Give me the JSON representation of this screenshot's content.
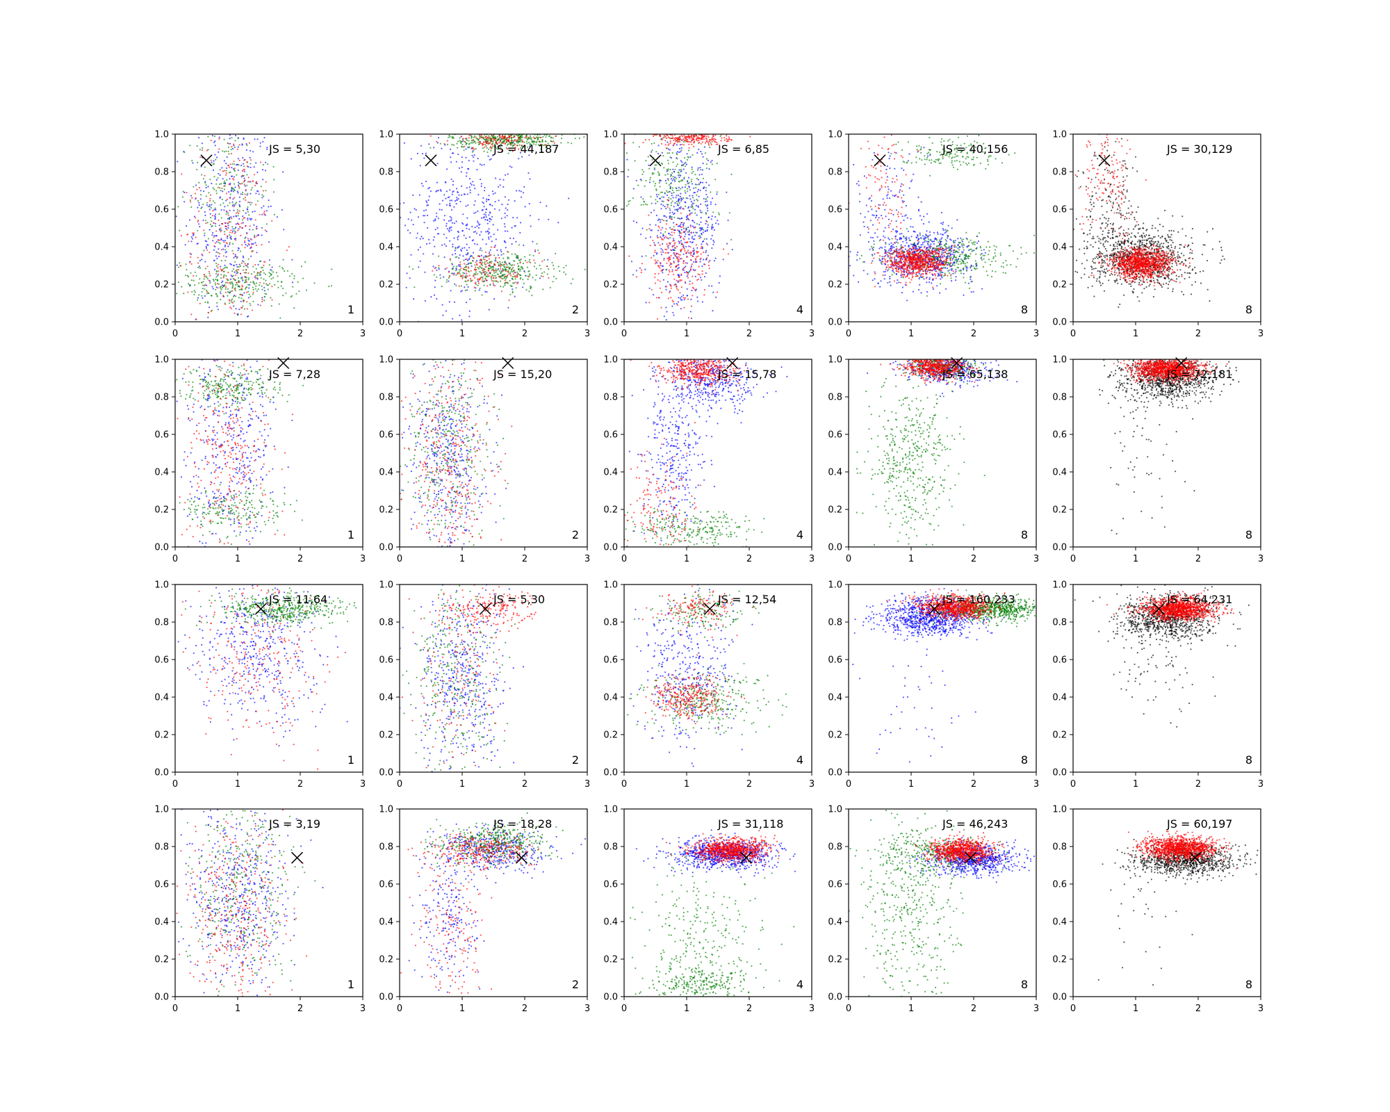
{
  "chart_data": {
    "type": "scatter",
    "layout": {
      "rows": 4,
      "cols": 5
    },
    "xlim": [
      0,
      3
    ],
    "ylim": [
      0,
      1
    ],
    "xticks": [
      "0",
      "1",
      "2",
      "3"
    ],
    "yticks": [
      "0.0",
      "0.2",
      "0.4",
      "0.6",
      "0.8",
      "1.0"
    ],
    "colors": {
      "blue": "#0000ff",
      "green": "#008000",
      "red": "#ff0000",
      "black": "#000000"
    },
    "rows": [
      {
        "marker": [
          0.5,
          0.86
        ],
        "panels": [
          {
            "label": "JS = 5,30",
            "number": "1",
            "clusters": [
              {
                "color": "blue",
                "n": 420,
                "cx": 0.9,
                "cy": 0.55,
                "sx": 0.35,
                "sy": 0.3
              },
              {
                "color": "green",
                "n": 300,
                "cx": 1.0,
                "cy": 0.2,
                "sx": 0.5,
                "sy": 0.06
              },
              {
                "color": "green",
                "n": 200,
                "cx": 0.8,
                "cy": 0.7,
                "sx": 0.35,
                "sy": 0.2
              },
              {
                "color": "red",
                "n": 300,
                "cx": 0.9,
                "cy": 0.45,
                "sx": 0.4,
                "sy": 0.3
              }
            ]
          },
          {
            "label": "JS = 44,187",
            "number": "2",
            "clusters": [
              {
                "color": "blue",
                "n": 550,
                "cx": 1.1,
                "cy": 0.55,
                "sx": 0.5,
                "sy": 0.25
              },
              {
                "color": "green",
                "n": 380,
                "cx": 1.7,
                "cy": 0.97,
                "sx": 0.45,
                "sy": 0.025
              },
              {
                "color": "green",
                "n": 350,
                "cx": 1.6,
                "cy": 0.27,
                "sx": 0.45,
                "sy": 0.05
              },
              {
                "color": "red",
                "n": 150,
                "cx": 1.6,
                "cy": 0.97,
                "sx": 0.4,
                "sy": 0.025
              },
              {
                "color": "red",
                "n": 150,
                "cx": 1.4,
                "cy": 0.27,
                "sx": 0.4,
                "sy": 0.05
              }
            ]
          },
          {
            "label": "JS = 6,85",
            "number": "4",
            "clusters": [
              {
                "color": "blue",
                "n": 550,
                "cx": 0.95,
                "cy": 0.5,
                "sx": 0.3,
                "sy": 0.22
              },
              {
                "color": "green",
                "n": 250,
                "cx": 0.8,
                "cy": 0.75,
                "sx": 0.35,
                "sy": 0.15
              },
              {
                "color": "red",
                "n": 250,
                "cx": 1.1,
                "cy": 0.98,
                "sx": 0.3,
                "sy": 0.02
              },
              {
                "color": "red",
                "n": 250,
                "cx": 0.85,
                "cy": 0.32,
                "sx": 0.25,
                "sy": 0.12
              }
            ]
          },
          {
            "label": "JS = 40,156",
            "number": "8",
            "clusters": [
              {
                "color": "blue",
                "n": 650,
                "cx": 1.2,
                "cy": 0.35,
                "sx": 0.4,
                "sy": 0.07
              },
              {
                "color": "blue",
                "n": 150,
                "cx": 0.7,
                "cy": 0.6,
                "sx": 0.3,
                "sy": 0.2
              },
              {
                "color": "green",
                "n": 350,
                "cx": 1.6,
                "cy": 0.35,
                "sx": 0.5,
                "sy": 0.06
              },
              {
                "color": "green",
                "n": 150,
                "cx": 1.6,
                "cy": 0.9,
                "sx": 0.4,
                "sy": 0.04
              },
              {
                "color": "red",
                "n": 700,
                "cx": 1.1,
                "cy": 0.32,
                "sx": 0.25,
                "sy": 0.04
              },
              {
                "color": "red",
                "n": 100,
                "cx": 0.6,
                "cy": 0.7,
                "sx": 0.2,
                "sy": 0.2
              }
            ]
          },
          {
            "label": "JS = 30,129",
            "number": "8",
            "clusters": [
              {
                "color": "black",
                "n": 900,
                "cx": 1.1,
                "cy": 0.34,
                "sx": 0.4,
                "sy": 0.08
              },
              {
                "color": "black",
                "n": 200,
                "cx": 0.6,
                "cy": 0.6,
                "sx": 0.3,
                "sy": 0.2
              },
              {
                "color": "red",
                "n": 1000,
                "cx": 1.1,
                "cy": 0.31,
                "sx": 0.25,
                "sy": 0.04
              },
              {
                "color": "red",
                "n": 150,
                "cx": 0.6,
                "cy": 0.75,
                "sx": 0.25,
                "sy": 0.15
              }
            ]
          }
        ]
      },
      {
        "marker": [
          1.73,
          0.98
        ],
        "panels": [
          {
            "label": "JS = 7,28",
            "number": "1",
            "clusters": [
              {
                "color": "blue",
                "n": 400,
                "cx": 0.9,
                "cy": 0.55,
                "sx": 0.35,
                "sy": 0.28
              },
              {
                "color": "green",
                "n": 250,
                "cx": 0.9,
                "cy": 0.85,
                "sx": 0.4,
                "sy": 0.05
              },
              {
                "color": "green",
                "n": 200,
                "cx": 0.9,
                "cy": 0.2,
                "sx": 0.45,
                "sy": 0.06
              },
              {
                "color": "red",
                "n": 300,
                "cx": 0.85,
                "cy": 0.5,
                "sx": 0.35,
                "sy": 0.3
              }
            ]
          },
          {
            "label": "JS = 15,20",
            "number": "2",
            "clusters": [
              {
                "color": "blue",
                "n": 450,
                "cx": 0.8,
                "cy": 0.5,
                "sx": 0.3,
                "sy": 0.28
              },
              {
                "color": "green",
                "n": 350,
                "cx": 0.8,
                "cy": 0.5,
                "sx": 0.35,
                "sy": 0.3
              },
              {
                "color": "red",
                "n": 350,
                "cx": 0.8,
                "cy": 0.45,
                "sx": 0.35,
                "sy": 0.3
              }
            ]
          },
          {
            "label": "JS = 15,78",
            "number": "4",
            "clusters": [
              {
                "color": "blue",
                "n": 400,
                "cx": 1.4,
                "cy": 0.88,
                "sx": 0.4,
                "sy": 0.07
              },
              {
                "color": "blue",
                "n": 300,
                "cx": 0.8,
                "cy": 0.5,
                "sx": 0.25,
                "sy": 0.2
              },
              {
                "color": "green",
                "n": 250,
                "cx": 1.1,
                "cy": 0.1,
                "sx": 0.5,
                "sy": 0.05
              },
              {
                "color": "red",
                "n": 450,
                "cx": 1.2,
                "cy": 0.94,
                "sx": 0.3,
                "sy": 0.04
              },
              {
                "color": "red",
                "n": 150,
                "cx": 0.5,
                "cy": 0.2,
                "sx": 0.3,
                "sy": 0.15
              }
            ]
          },
          {
            "label": "JS = 65,138",
            "number": "8",
            "clusters": [
              {
                "color": "blue",
                "n": 400,
                "cx": 1.6,
                "cy": 0.94,
                "sx": 0.35,
                "sy": 0.04
              },
              {
                "color": "green",
                "n": 450,
                "cx": 1.0,
                "cy": 0.45,
                "sx": 0.35,
                "sy": 0.22
              },
              {
                "color": "green",
                "n": 250,
                "cx": 1.5,
                "cy": 0.96,
                "sx": 0.3,
                "sy": 0.03
              },
              {
                "color": "red",
                "n": 600,
                "cx": 1.4,
                "cy": 0.96,
                "sx": 0.25,
                "sy": 0.03
              }
            ]
          },
          {
            "label": "JS = 72,181",
            "number": "8",
            "clusters": [
              {
                "color": "black",
                "n": 900,
                "cx": 1.5,
                "cy": 0.9,
                "sx": 0.4,
                "sy": 0.06
              },
              {
                "color": "black",
                "n": 60,
                "cx": 1.1,
                "cy": 0.5,
                "sx": 0.35,
                "sy": 0.2
              },
              {
                "color": "red",
                "n": 1100,
                "cx": 1.5,
                "cy": 0.95,
                "sx": 0.28,
                "sy": 0.03
              }
            ]
          }
        ]
      },
      {
        "marker": [
          1.37,
          0.87
        ],
        "panels": [
          {
            "label": "JS = 11,64",
            "number": "1",
            "clusters": [
              {
                "color": "blue",
                "n": 450,
                "cx": 1.3,
                "cy": 0.65,
                "sx": 0.5,
                "sy": 0.2
              },
              {
                "color": "green",
                "n": 450,
                "cx": 1.7,
                "cy": 0.87,
                "sx": 0.5,
                "sy": 0.04
              },
              {
                "color": "red",
                "n": 250,
                "cx": 1.3,
                "cy": 0.6,
                "sx": 0.5,
                "sy": 0.25
              }
            ]
          },
          {
            "label": "JS = 5,30",
            "number": "2",
            "clusters": [
              {
                "color": "blue",
                "n": 450,
                "cx": 1.0,
                "cy": 0.5,
                "sx": 0.35,
                "sy": 0.25
              },
              {
                "color": "green",
                "n": 300,
                "cx": 0.9,
                "cy": 0.45,
                "sx": 0.35,
                "sy": 0.28
              },
              {
                "color": "red",
                "n": 200,
                "cx": 1.4,
                "cy": 0.87,
                "sx": 0.35,
                "sy": 0.05
              },
              {
                "color": "red",
                "n": 150,
                "cx": 0.9,
                "cy": 0.5,
                "sx": 0.35,
                "sy": 0.25
              }
            ]
          },
          {
            "label": "JS = 12,54",
            "number": "4",
            "clusters": [
              {
                "color": "blue",
                "n": 350,
                "cx": 1.0,
                "cy": 0.5,
                "sx": 0.35,
                "sy": 0.2
              },
              {
                "color": "green",
                "n": 300,
                "cx": 1.3,
                "cy": 0.38,
                "sx": 0.5,
                "sy": 0.08
              },
              {
                "color": "green",
                "n": 150,
                "cx": 1.3,
                "cy": 0.85,
                "sx": 0.35,
                "sy": 0.05
              },
              {
                "color": "red",
                "n": 300,
                "cx": 1.0,
                "cy": 0.4,
                "sx": 0.3,
                "sy": 0.06
              },
              {
                "color": "red",
                "n": 150,
                "cx": 1.2,
                "cy": 0.87,
                "sx": 0.3,
                "sy": 0.05
              }
            ]
          },
          {
            "label": "JS = 160,233",
            "number": "8",
            "clusters": [
              {
                "color": "blue",
                "n": 900,
                "cx": 1.3,
                "cy": 0.83,
                "sx": 0.4,
                "sy": 0.05
              },
              {
                "color": "green",
                "n": 700,
                "cx": 2.3,
                "cy": 0.87,
                "sx": 0.45,
                "sy": 0.03
              },
              {
                "color": "red",
                "n": 800,
                "cx": 1.7,
                "cy": 0.88,
                "sx": 0.28,
                "sy": 0.03
              },
              {
                "color": "blue",
                "n": 40,
                "cx": 1.2,
                "cy": 0.4,
                "sx": 0.4,
                "sy": 0.2
              }
            ]
          },
          {
            "label": "JS = 64,231",
            "number": "8",
            "clusters": [
              {
                "color": "black",
                "n": 900,
                "cx": 1.5,
                "cy": 0.82,
                "sx": 0.4,
                "sy": 0.06
              },
              {
                "color": "black",
                "n": 60,
                "cx": 1.3,
                "cy": 0.5,
                "sx": 0.35,
                "sy": 0.15
              },
              {
                "color": "red",
                "n": 1100,
                "cx": 1.7,
                "cy": 0.87,
                "sx": 0.28,
                "sy": 0.03
              }
            ]
          }
        ]
      },
      {
        "marker": [
          1.95,
          0.74
        ],
        "panels": [
          {
            "label": "JS = 3,19",
            "number": "1",
            "clusters": [
              {
                "color": "blue",
                "n": 500,
                "cx": 1.0,
                "cy": 0.5,
                "sx": 0.4,
                "sy": 0.25
              },
              {
                "color": "green",
                "n": 350,
                "cx": 1.1,
                "cy": 0.55,
                "sx": 0.45,
                "sy": 0.25
              },
              {
                "color": "red",
                "n": 350,
                "cx": 1.0,
                "cy": 0.45,
                "sx": 0.4,
                "sy": 0.28
              }
            ]
          },
          {
            "label": "JS = 18,28",
            "number": "2",
            "clusters": [
              {
                "color": "blue",
                "n": 400,
                "cx": 1.5,
                "cy": 0.78,
                "sx": 0.45,
                "sy": 0.06
              },
              {
                "color": "blue",
                "n": 200,
                "cx": 0.8,
                "cy": 0.4,
                "sx": 0.25,
                "sy": 0.2
              },
              {
                "color": "green",
                "n": 400,
                "cx": 1.5,
                "cy": 0.82,
                "sx": 0.45,
                "sy": 0.05
              },
              {
                "color": "red",
                "n": 300,
                "cx": 1.3,
                "cy": 0.78,
                "sx": 0.4,
                "sy": 0.05
              },
              {
                "color": "red",
                "n": 150,
                "cx": 0.8,
                "cy": 0.3,
                "sx": 0.3,
                "sy": 0.2
              }
            ]
          },
          {
            "label": "JS = 31,118",
            "number": "4",
            "clusters": [
              {
                "color": "blue",
                "n": 800,
                "cx": 1.6,
                "cy": 0.76,
                "sx": 0.4,
                "sy": 0.04
              },
              {
                "color": "green",
                "n": 300,
                "cx": 1.3,
                "cy": 0.3,
                "sx": 0.5,
                "sy": 0.22
              },
              {
                "color": "green",
                "n": 200,
                "cx": 1.2,
                "cy": 0.07,
                "sx": 0.4,
                "sy": 0.04
              },
              {
                "color": "red",
                "n": 800,
                "cx": 1.7,
                "cy": 0.78,
                "sx": 0.3,
                "sy": 0.03
              }
            ]
          },
          {
            "label": "JS = 46,243",
            "number": "8",
            "clusters": [
              {
                "color": "blue",
                "n": 700,
                "cx": 2.0,
                "cy": 0.73,
                "sx": 0.35,
                "sy": 0.04
              },
              {
                "color": "green",
                "n": 450,
                "cx": 1.0,
                "cy": 0.5,
                "sx": 0.4,
                "sy": 0.25
              },
              {
                "color": "green",
                "n": 250,
                "cx": 1.4,
                "cy": 0.77,
                "sx": 0.4,
                "sy": 0.05
              },
              {
                "color": "red",
                "n": 800,
                "cx": 1.8,
                "cy": 0.78,
                "sx": 0.25,
                "sy": 0.03
              }
            ]
          },
          {
            "label": "JS = 60,197",
            "number": "8",
            "clusters": [
              {
                "color": "black",
                "n": 900,
                "cx": 1.8,
                "cy": 0.73,
                "sx": 0.4,
                "sy": 0.04
              },
              {
                "color": "black",
                "n": 30,
                "cx": 1.2,
                "cy": 0.4,
                "sx": 0.35,
                "sy": 0.2
              },
              {
                "color": "red",
                "n": 1100,
                "cx": 1.7,
                "cy": 0.79,
                "sx": 0.3,
                "sy": 0.03
              }
            ]
          }
        ]
      }
    ]
  }
}
